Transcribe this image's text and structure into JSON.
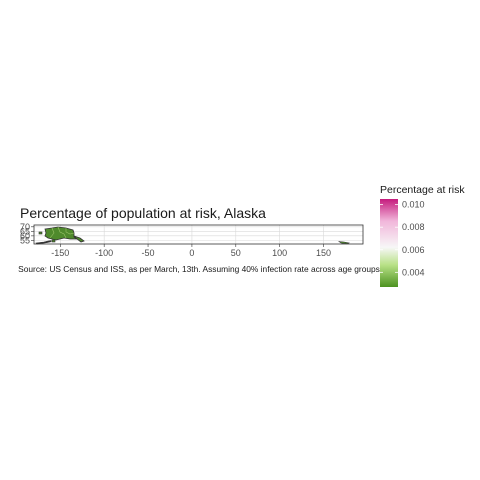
{
  "map": {
    "title": "Percentage of population at risk, Alaska",
    "caption": "Source: US Census and ISS, as per March, 13th. Assuming 40% infection rate across age groups",
    "x_ticks": [
      "-150",
      "-100",
      "-50",
      "0",
      "50",
      "100",
      "150"
    ],
    "y_ticks": [
      "70",
      "65",
      "60",
      "55"
    ],
    "x_range": [
      -180,
      195
    ],
    "y_range": [
      51,
      72
    ]
  },
  "legend": {
    "title": "Percentage at risk",
    "ticks": [
      "0.010",
      "0.008",
      "0.006",
      "0.004"
    ],
    "range": [
      0.0027,
      0.0105
    ],
    "colors": {
      "high": "#c51b7d",
      "mid_high": "#f1b6da",
      "mid": "#f7f7f7",
      "mid_low": "#b8e186",
      "low": "#4d9221"
    }
  },
  "colors": {
    "panel_border": "#333333",
    "grid": "#d9d9d9",
    "land_fill": "#4f8a2c",
    "land_outline": "#333333"
  }
}
